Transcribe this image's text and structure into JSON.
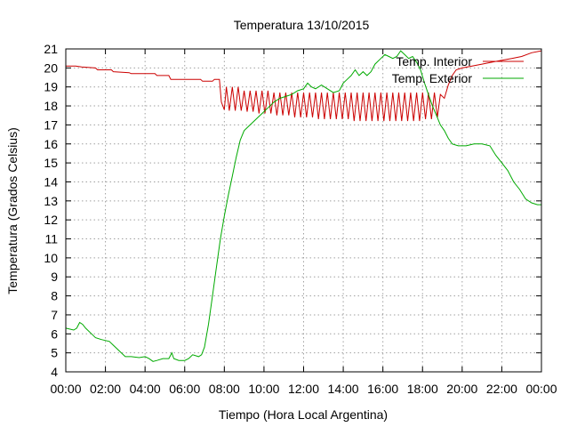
{
  "chart_data": {
    "type": "line",
    "title": "Temperatura 13/10/2015",
    "xlabel": "Tiempo (Hora Local Argentina)",
    "ylabel": "Temperatura (Grados Celsius)",
    "xlim": [
      0,
      24
    ],
    "ylim": [
      4,
      21
    ],
    "x_ticks": [
      {
        "value": 0,
        "label": "00:00"
      },
      {
        "value": 2,
        "label": "02:00"
      },
      {
        "value": 4,
        "label": "04:00"
      },
      {
        "value": 6,
        "label": "06:00"
      },
      {
        "value": 8,
        "label": "08:00"
      },
      {
        "value": 10,
        "label": "10:00"
      },
      {
        "value": 12,
        "label": "12:00"
      },
      {
        "value": 14,
        "label": "14:00"
      },
      {
        "value": 16,
        "label": "16:00"
      },
      {
        "value": 18,
        "label": "18:00"
      },
      {
        "value": 20,
        "label": "20:00"
      },
      {
        "value": 22,
        "label": "22:00"
      },
      {
        "value": 24,
        "label": "00:00"
      }
    ],
    "y_ticks": [
      {
        "value": 4,
        "label": "4"
      },
      {
        "value": 5,
        "label": "5"
      },
      {
        "value": 6,
        "label": "6"
      },
      {
        "value": 7,
        "label": "7"
      },
      {
        "value": 8,
        "label": "8"
      },
      {
        "value": 9,
        "label": "9"
      },
      {
        "value": 10,
        "label": "10"
      },
      {
        "value": 11,
        "label": "11"
      },
      {
        "value": 12,
        "label": "12"
      },
      {
        "value": 13,
        "label": "13"
      },
      {
        "value": 14,
        "label": "14"
      },
      {
        "value": 15,
        "label": "15"
      },
      {
        "value": 16,
        "label": "16"
      },
      {
        "value": 17,
        "label": "17"
      },
      {
        "value": 18,
        "label": "18"
      },
      {
        "value": 19,
        "label": "19"
      },
      {
        "value": 20,
        "label": "20"
      },
      {
        "value": 21,
        "label": "21"
      }
    ],
    "grid": true,
    "legend_position": "top-right",
    "series": [
      {
        "name": "Temp. Interior",
        "color": "#cc0000",
        "points": [
          [
            0,
            20.1
          ],
          [
            0.5,
            20.1
          ],
          [
            0.8,
            20.05
          ],
          [
            1.5,
            20.0
          ],
          [
            1.6,
            19.9
          ],
          [
            2.3,
            19.9
          ],
          [
            2.4,
            19.8
          ],
          [
            3.2,
            19.75
          ],
          [
            3.3,
            19.7
          ],
          [
            4.5,
            19.7
          ],
          [
            4.6,
            19.6
          ],
          [
            5.2,
            19.6
          ],
          [
            5.3,
            19.4
          ],
          [
            6.8,
            19.4
          ],
          [
            6.9,
            19.3
          ],
          [
            7.4,
            19.3
          ],
          [
            7.5,
            19.4
          ],
          [
            7.75,
            19.4
          ],
          [
            7.85,
            18.2
          ],
          [
            8.0,
            17.8
          ],
          [
            8.1,
            19.0
          ],
          [
            8.25,
            17.75
          ],
          [
            8.4,
            19.0
          ],
          [
            8.55,
            17.75
          ],
          [
            8.7,
            19.0
          ],
          [
            8.85,
            17.75
          ],
          [
            9.0,
            18.8
          ],
          [
            9.15,
            17.7
          ],
          [
            9.3,
            18.8
          ],
          [
            9.45,
            17.7
          ],
          [
            9.6,
            18.8
          ],
          [
            9.75,
            17.6
          ],
          [
            9.9,
            18.8
          ],
          [
            10.05,
            17.6
          ],
          [
            10.2,
            18.8
          ],
          [
            10.35,
            17.6
          ],
          [
            10.5,
            18.7
          ],
          [
            10.65,
            17.5
          ],
          [
            10.8,
            18.7
          ],
          [
            10.95,
            17.5
          ],
          [
            11.1,
            18.7
          ],
          [
            11.25,
            17.5
          ],
          [
            11.4,
            18.7
          ],
          [
            11.55,
            17.4
          ],
          [
            11.7,
            18.7
          ],
          [
            11.85,
            17.4
          ],
          [
            12.0,
            18.7
          ],
          [
            12.15,
            17.4
          ],
          [
            12.3,
            18.7
          ],
          [
            12.45,
            17.4
          ],
          [
            12.6,
            18.7
          ],
          [
            12.75,
            17.3
          ],
          [
            12.9,
            18.7
          ],
          [
            13.05,
            17.3
          ],
          [
            13.2,
            18.7
          ],
          [
            13.35,
            17.3
          ],
          [
            13.5,
            18.7
          ],
          [
            13.65,
            17.3
          ],
          [
            13.8,
            18.7
          ],
          [
            13.95,
            17.3
          ],
          [
            14.1,
            18.7
          ],
          [
            14.25,
            17.3
          ],
          [
            14.4,
            18.7
          ],
          [
            14.55,
            17.2
          ],
          [
            14.7,
            18.7
          ],
          [
            14.85,
            17.2
          ],
          [
            15.0,
            18.7
          ],
          [
            15.15,
            17.2
          ],
          [
            15.3,
            18.7
          ],
          [
            15.45,
            17.2
          ],
          [
            15.6,
            18.7
          ],
          [
            15.75,
            17.2
          ],
          [
            15.9,
            18.7
          ],
          [
            16.05,
            17.2
          ],
          [
            16.2,
            18.7
          ],
          [
            16.35,
            17.2
          ],
          [
            16.5,
            18.7
          ],
          [
            16.65,
            17.2
          ],
          [
            16.8,
            18.7
          ],
          [
            16.95,
            17.2
          ],
          [
            17.1,
            18.7
          ],
          [
            17.25,
            17.2
          ],
          [
            17.4,
            18.7
          ],
          [
            17.55,
            17.2
          ],
          [
            17.7,
            18.7
          ],
          [
            17.85,
            17.2
          ],
          [
            18.0,
            18.7
          ],
          [
            18.15,
            17.3
          ],
          [
            18.3,
            18.7
          ],
          [
            18.45,
            17.3
          ],
          [
            18.6,
            18.7
          ],
          [
            18.75,
            17.4
          ],
          [
            18.9,
            18.6
          ],
          [
            19.1,
            18.4
          ],
          [
            19.3,
            19.1
          ],
          [
            19.5,
            19.6
          ],
          [
            19.7,
            19.9
          ],
          [
            20.0,
            20.0
          ],
          [
            20.5,
            20.1
          ],
          [
            21.0,
            20.2
          ],
          [
            21.5,
            20.3
          ],
          [
            22.0,
            20.4
          ],
          [
            22.5,
            20.5
          ],
          [
            23.0,
            20.6
          ],
          [
            23.5,
            20.8
          ],
          [
            24.0,
            20.9
          ]
        ]
      },
      {
        "name": "Temp. Exterior",
        "color": "#00aa00",
        "points": [
          [
            0,
            6.3
          ],
          [
            0.4,
            6.2
          ],
          [
            0.55,
            6.3
          ],
          [
            0.7,
            6.6
          ],
          [
            0.85,
            6.5
          ],
          [
            1.0,
            6.3
          ],
          [
            1.3,
            6.0
          ],
          [
            1.5,
            5.8
          ],
          [
            1.8,
            5.7
          ],
          [
            2.2,
            5.6
          ],
          [
            2.4,
            5.4
          ],
          [
            2.6,
            5.2
          ],
          [
            2.8,
            5.0
          ],
          [
            3.0,
            4.8
          ],
          [
            3.3,
            4.8
          ],
          [
            3.7,
            4.75
          ],
          [
            4.0,
            4.8
          ],
          [
            4.2,
            4.7
          ],
          [
            4.4,
            4.55
          ],
          [
            4.6,
            4.6
          ],
          [
            4.9,
            4.7
          ],
          [
            5.2,
            4.7
          ],
          [
            5.35,
            5.0
          ],
          [
            5.45,
            4.7
          ],
          [
            5.7,
            4.6
          ],
          [
            6.0,
            4.6
          ],
          [
            6.2,
            4.7
          ],
          [
            6.4,
            4.9
          ],
          [
            6.7,
            4.8
          ],
          [
            6.85,
            4.9
          ],
          [
            7.0,
            5.3
          ],
          [
            7.2,
            6.5
          ],
          [
            7.4,
            8.0
          ],
          [
            7.6,
            9.5
          ],
          [
            7.8,
            11.0
          ],
          [
            8.0,
            12.2
          ],
          [
            8.2,
            13.3
          ],
          [
            8.4,
            14.3
          ],
          [
            8.6,
            15.3
          ],
          [
            8.8,
            16.2
          ],
          [
            9.0,
            16.7
          ],
          [
            9.3,
            17.0
          ],
          [
            9.6,
            17.3
          ],
          [
            9.9,
            17.6
          ],
          [
            10.2,
            17.9
          ],
          [
            10.5,
            18.2
          ],
          [
            10.8,
            18.4
          ],
          [
            11.1,
            18.5
          ],
          [
            11.4,
            18.6
          ],
          [
            11.7,
            18.8
          ],
          [
            12.0,
            18.9
          ],
          [
            12.2,
            19.2
          ],
          [
            12.4,
            19.0
          ],
          [
            12.6,
            18.9
          ],
          [
            12.9,
            19.1
          ],
          [
            13.2,
            18.9
          ],
          [
            13.5,
            18.7
          ],
          [
            13.8,
            18.8
          ],
          [
            14.0,
            19.2
          ],
          [
            14.2,
            19.4
          ],
          [
            14.4,
            19.6
          ],
          [
            14.6,
            19.9
          ],
          [
            14.8,
            19.6
          ],
          [
            15.0,
            19.8
          ],
          [
            15.2,
            19.6
          ],
          [
            15.4,
            19.8
          ],
          [
            15.6,
            20.2
          ],
          [
            15.9,
            20.5
          ],
          [
            16.1,
            20.7
          ],
          [
            16.3,
            20.6
          ],
          [
            16.5,
            20.5
          ],
          [
            16.7,
            20.6
          ],
          [
            16.9,
            20.9
          ],
          [
            17.1,
            20.7
          ],
          [
            17.3,
            20.5
          ],
          [
            17.5,
            20.6
          ],
          [
            17.7,
            20.3
          ],
          [
            17.9,
            19.9
          ],
          [
            18.1,
            19.2
          ],
          [
            18.3,
            18.6
          ],
          [
            18.5,
            18.0
          ],
          [
            18.7,
            17.5
          ],
          [
            18.9,
            17.0
          ],
          [
            19.1,
            16.7
          ],
          [
            19.3,
            16.3
          ],
          [
            19.5,
            16.0
          ],
          [
            19.8,
            15.9
          ],
          [
            20.2,
            15.9
          ],
          [
            20.6,
            16.0
          ],
          [
            21.0,
            16.0
          ],
          [
            21.4,
            15.9
          ],
          [
            21.7,
            15.4
          ],
          [
            22.0,
            15.0
          ],
          [
            22.3,
            14.6
          ],
          [
            22.6,
            14.0
          ],
          [
            22.9,
            13.6
          ],
          [
            23.2,
            13.1
          ],
          [
            23.5,
            12.9
          ],
          [
            23.8,
            12.8
          ],
          [
            24.0,
            12.8
          ]
        ]
      }
    ]
  }
}
